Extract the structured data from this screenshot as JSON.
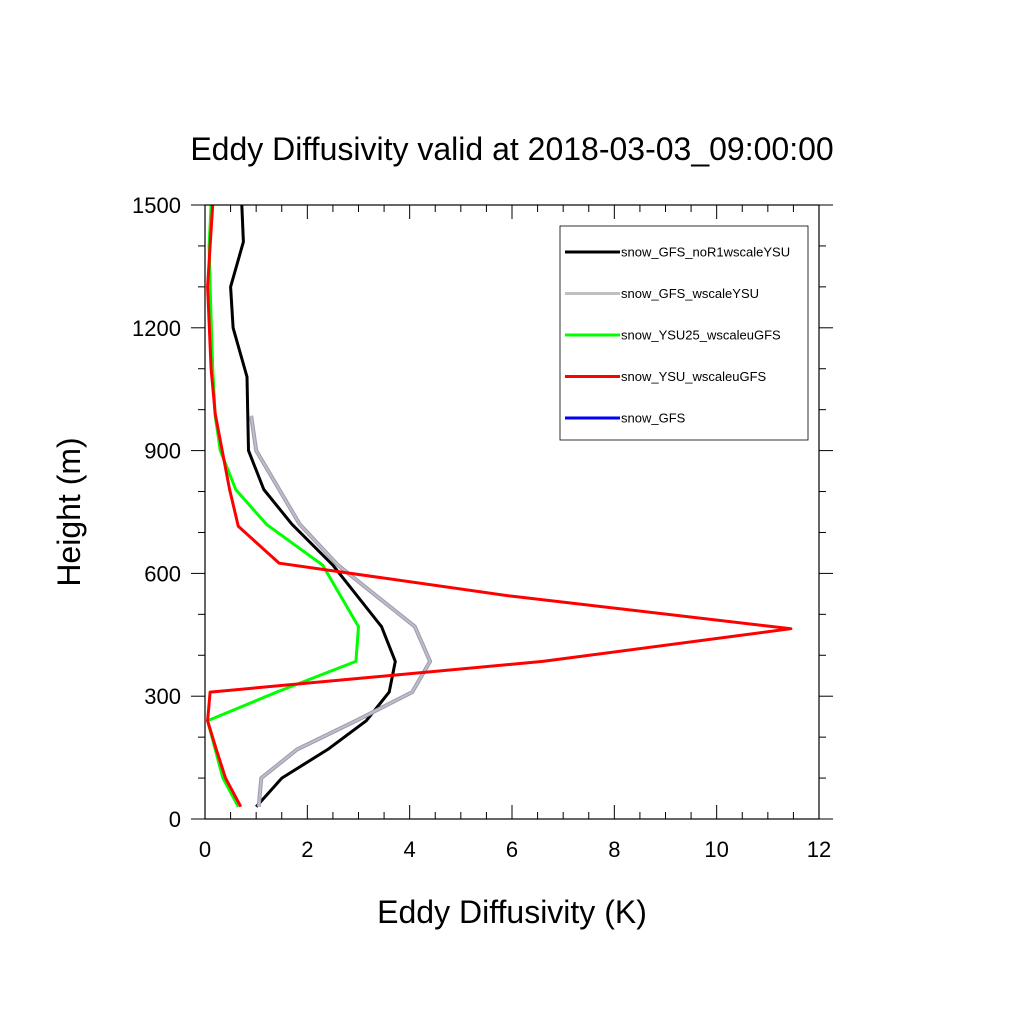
{
  "chart_data": {
    "type": "line",
    "title": "Eddy Diffusivity valid at 2018-03-03_09:00:00",
    "xlabel": "Eddy Diffusivity (K)",
    "ylabel": "Height (m)",
    "xlim": [
      0,
      12
    ],
    "ylim": [
      0,
      1500
    ],
    "xticks": [
      0,
      2,
      4,
      6,
      8,
      10,
      12
    ],
    "yticks": [
      0,
      300,
      600,
      900,
      1200,
      1500
    ],
    "x_tick_labels": [
      "0",
      "2",
      "4",
      "6",
      "8",
      "10",
      "12"
    ],
    "y_tick_labels": [
      "0",
      "300",
      "600",
      "900",
      "1200",
      "1500"
    ],
    "grid": false,
    "legend_position": "top-right",
    "series": [
      {
        "name": "snow_GFS_noR1wscaleYSU",
        "color": "#000000",
        "x": [
          1.0,
          1.5,
          2.4,
          3.15,
          3.6,
          3.72,
          3.45,
          2.5,
          1.7,
          1.15,
          0.85,
          0.82,
          0.55,
          0.5,
          0.75,
          0.72
        ],
        "y": [
          30,
          100,
          170,
          240,
          310,
          385,
          470,
          620,
          720,
          805,
          900,
          1080,
          1200,
          1300,
          1410,
          1500
        ]
      },
      {
        "name": "snow_GFS_wscaleYSU",
        "color": "#bfbfbf",
        "x": [
          1.05,
          1.1,
          1.8,
          2.95,
          4.05,
          4.4,
          4.1,
          2.6,
          1.85,
          1.45,
          1.0,
          0.9
        ],
        "y": [
          30,
          100,
          170,
          240,
          310,
          385,
          470,
          620,
          720,
          805,
          900,
          985
        ]
      },
      {
        "name": "snow_YSU25_wscaleuGFS",
        "color": "#00ff00",
        "x": [
          0.65,
          0.35,
          0.2,
          0.05,
          1.4,
          2.95,
          3.0,
          2.3,
          1.2,
          0.6,
          0.3,
          0.2,
          0.15,
          0.1,
          0.08,
          0.12
        ],
        "y": [
          30,
          100,
          170,
          240,
          310,
          385,
          470,
          620,
          720,
          805,
          900,
          985,
          1100,
          1300,
          1400,
          1500
        ]
      },
      {
        "name": "snow_YSU_wscaleuGFS",
        "color": "#ff0000",
        "x": [
          0.7,
          0.4,
          0.22,
          0.05,
          0.1,
          6.6,
          11.45,
          5.95,
          1.45,
          0.65,
          0.48,
          0.2,
          0.12,
          0.05,
          0.1,
          0.15
        ],
        "y": [
          30,
          100,
          170,
          240,
          310,
          385,
          465,
          545,
          625,
          715,
          805,
          990,
          1100,
          1300,
          1400,
          1500
        ]
      },
      {
        "name": "snow_GFS",
        "color": "#0000ff",
        "x": [],
        "y": []
      }
    ]
  }
}
